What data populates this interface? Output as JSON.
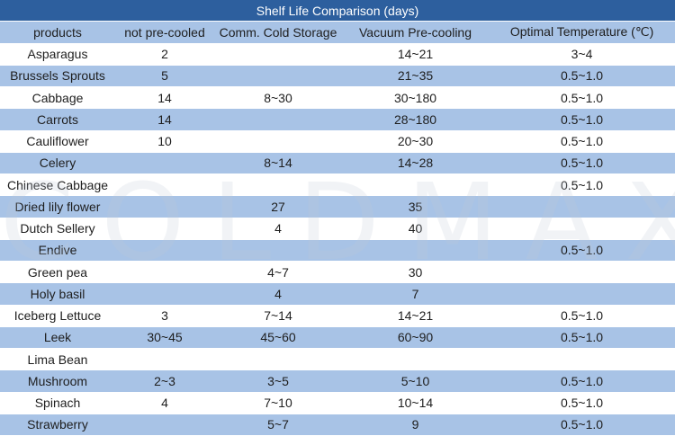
{
  "table": {
    "title": "Shelf Life Comparison (days)",
    "headers": [
      "products",
      "not pre-cooled",
      "Comm. Cold Storage",
      "Vacuum Pre-cooling",
      "Optimal Temperature (℃)"
    ],
    "rows": [
      [
        "Asparagus",
        "2",
        "",
        "14~21",
        "3~4"
      ],
      [
        "Brussels Sprouts",
        "5",
        "",
        "21~35",
        "0.5~1.0"
      ],
      [
        "Cabbage",
        "14",
        "8~30",
        "30~180",
        "0.5~1.0"
      ],
      [
        "Carrots",
        "14",
        "",
        "28~180",
        "0.5~1.0"
      ],
      [
        "Cauliflower",
        "10",
        "",
        "20~30",
        "0.5~1.0"
      ],
      [
        "Celery",
        "",
        "8~14",
        "14~28",
        "0.5~1.0"
      ],
      [
        "Chinese Cabbage",
        "",
        "",
        "",
        "0.5~1.0"
      ],
      [
        "Dried lily flower",
        "",
        "27",
        "35",
        ""
      ],
      [
        "Dutch Sellery",
        "",
        "4",
        "40",
        ""
      ],
      [
        "Endive",
        "",
        "",
        "",
        "0.5~1.0"
      ],
      [
        "Green pea",
        "",
        "4~7",
        "30",
        ""
      ],
      [
        "Holy basil",
        "",
        "4",
        "7",
        ""
      ],
      [
        "Iceberg Lettuce",
        "3",
        "7~14",
        "14~21",
        "0.5~1.0"
      ],
      [
        "Leek",
        "30~45",
        "45~60",
        "60~90",
        "0.5~1.0"
      ],
      [
        "Lima Bean",
        "",
        "",
        "",
        ""
      ],
      [
        "Mushroom",
        "2~3",
        "3~5",
        "5~10",
        "0.5~1.0"
      ],
      [
        "Spinach",
        "4",
        "7~10",
        "10~14",
        "0.5~1.0"
      ],
      [
        "Strawberry",
        "",
        "5~7",
        "9",
        "0.5~1.0"
      ]
    ]
  },
  "watermark": "COLDMAX",
  "colors": {
    "title_bg": "#2d5f9e",
    "band_blue": "#a8c3e6",
    "band_white": "#ffffff"
  }
}
